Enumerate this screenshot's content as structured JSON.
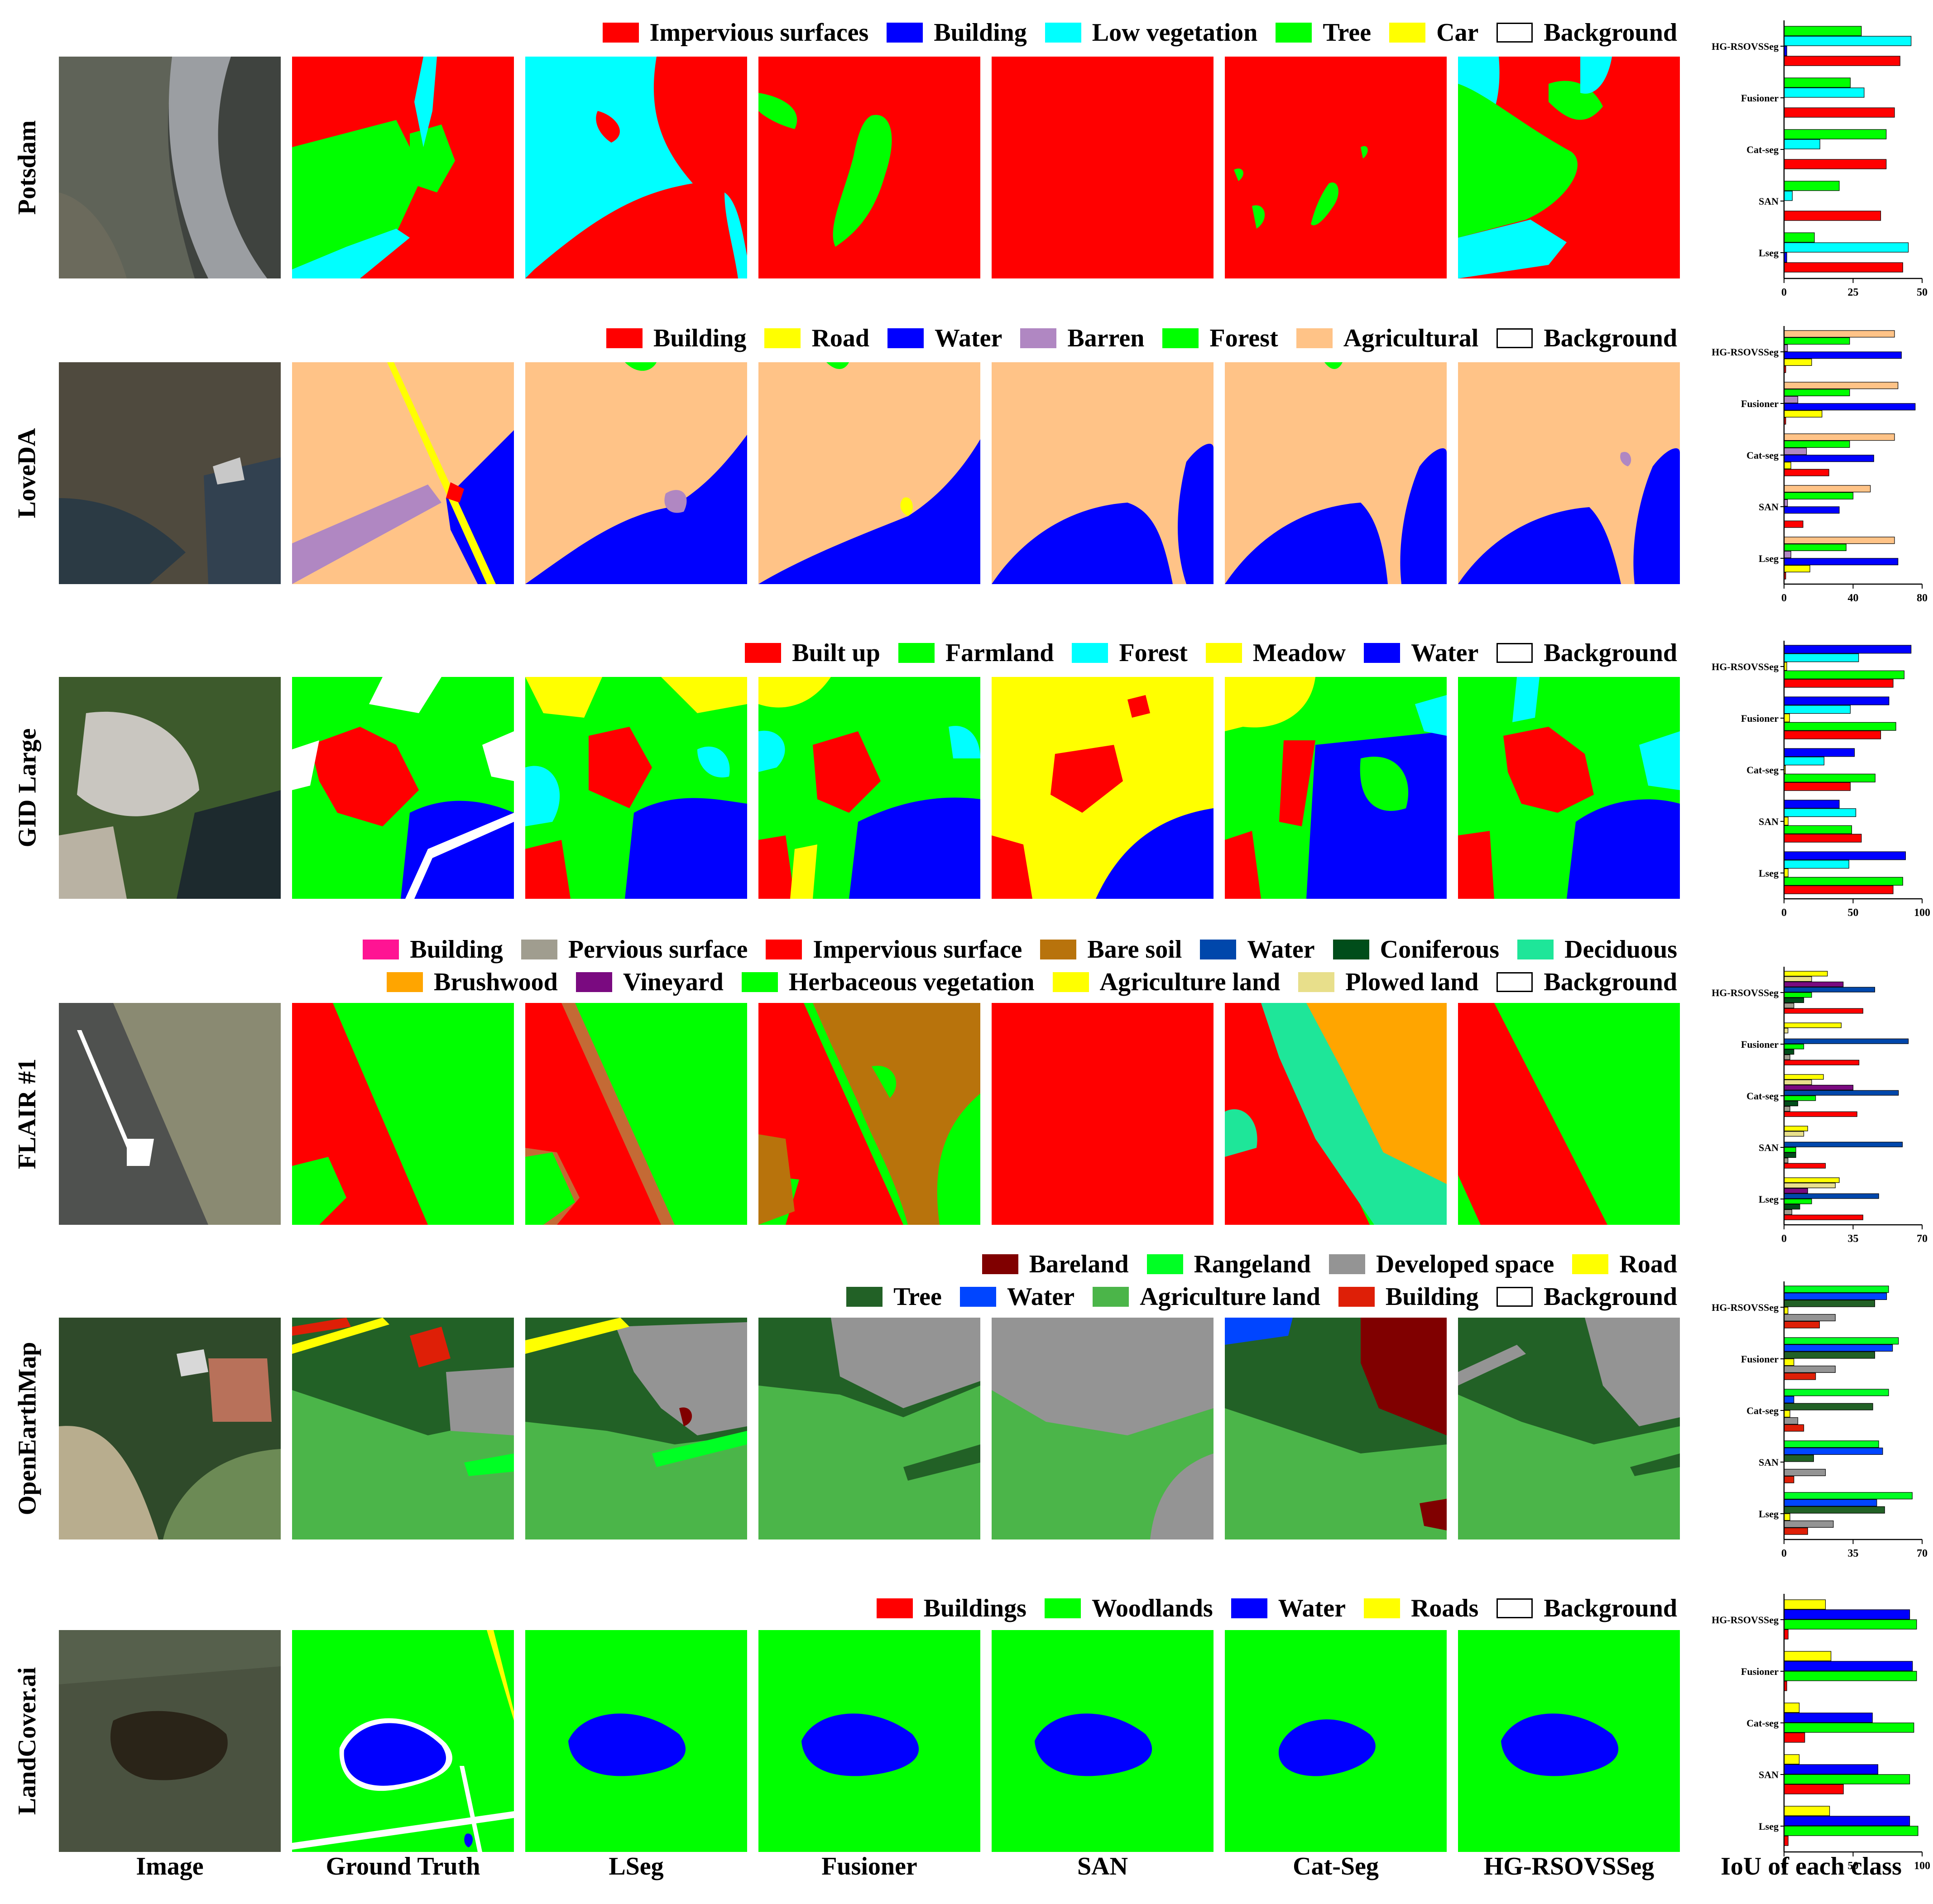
{
  "columns": [
    "Image",
    "Ground Truth",
    "LSeg",
    "Fusioner",
    "SAN",
    "Cat-Seg",
    "HG-RSOVSSeg",
    "IoU of each class"
  ],
  "methods_top_to_bottom": [
    "HG-RSOVSSeg",
    "Fusioner",
    "Cat-seg",
    "SAN",
    "Lseg"
  ],
  "rows": [
    {
      "name": "Potsdam",
      "legend_lines": [
        [
          {
            "label": "Impervious surfaces",
            "color": "#ff0000"
          },
          {
            "label": "Building",
            "color": "#0000ff"
          },
          {
            "label": "Low vegetation",
            "color": "#00ffff"
          },
          {
            "label": "Tree",
            "color": "#00ff00"
          },
          {
            "label": "Car",
            "color": "#ffff00"
          },
          {
            "label": "Background",
            "color": "#ffffff"
          }
        ]
      ],
      "iou": {
        "axis_max": 50,
        "ticks": [
          0,
          25,
          50
        ],
        "classes": [
          {
            "color": "#00ff00",
            "values": [
              28,
              24,
              37,
              20,
              11
            ]
          },
          {
            "color": "#00ffff",
            "values": [
              46,
              29,
              13,
              3,
              45
            ]
          },
          {
            "color": "#0000ff",
            "values": [
              1,
              0,
              0,
              0,
              1
            ]
          },
          {
            "color": "#ff0000",
            "values": [
              42,
              40,
              37,
              35,
              43
            ]
          }
        ]
      }
    },
    {
      "name": "LoveDA",
      "legend_lines": [
        [
          {
            "label": "Building",
            "color": "#ff0000"
          },
          {
            "label": "Road",
            "color": "#ffff00"
          },
          {
            "label": "Water",
            "color": "#0000ff"
          },
          {
            "label": "Barren",
            "color": "#b087c2"
          },
          {
            "label": "Forest",
            "color": "#00ff00"
          },
          {
            "label": "Agricultural",
            "color": "#ffc387"
          },
          {
            "label": "Background",
            "color": "#ffffff"
          }
        ]
      ],
      "iou": {
        "axis_max": 80,
        "ticks": [
          0,
          40,
          80
        ],
        "classes": [
          {
            "color": "#ffc387",
            "values": [
              64,
              66,
              64,
              50,
              64
            ]
          },
          {
            "color": "#00ff00",
            "values": [
              38,
              38,
              38,
              40,
              36
            ]
          },
          {
            "color": "#b087c2",
            "values": [
              2,
              8,
              13,
              2,
              4
            ]
          },
          {
            "color": "#0000ff",
            "values": [
              68,
              76,
              52,
              32,
              66
            ]
          },
          {
            "color": "#ffff00",
            "values": [
              16,
              22,
              4,
              0,
              15
            ]
          },
          {
            "color": "#ff0000",
            "values": [
              1,
              1,
              26,
              11,
              1
            ]
          }
        ]
      }
    },
    {
      "name": "GID Large",
      "legend_lines": [
        [
          {
            "label": "Built up",
            "color": "#ff0000"
          },
          {
            "label": "Farmland",
            "color": "#00ff00"
          },
          {
            "label": "Forest",
            "color": "#00ffff"
          },
          {
            "label": "Meadow",
            "color": "#ffff00"
          },
          {
            "label": "Water",
            "color": "#0000ff"
          },
          {
            "label": "Background",
            "color": "#ffffff"
          }
        ]
      ],
      "iou": {
        "axis_max": 100,
        "ticks": [
          0,
          50,
          100
        ],
        "classes": [
          {
            "color": "#0000ff",
            "values": [
              92,
              76,
              51,
              40,
              88
            ]
          },
          {
            "color": "#00ffff",
            "values": [
              54,
              48,
              29,
              52,
              47
            ]
          },
          {
            "color": "#ffff00",
            "values": [
              2,
              4,
              1,
              3,
              3
            ]
          },
          {
            "color": "#00ff00",
            "values": [
              87,
              81,
              66,
              49,
              86
            ]
          },
          {
            "color": "#ff0000",
            "values": [
              79,
              70,
              48,
              56,
              79
            ]
          }
        ]
      }
    },
    {
      "name": "FLAIR #1",
      "legend_lines": [
        [
          {
            "label": "Building",
            "color": "#ff1493"
          },
          {
            "label": "Pervious surface",
            "color": "#a09d8f"
          },
          {
            "label": "Impervious surface",
            "color": "#ff0000"
          },
          {
            "label": "Bare soil",
            "color": "#b8730c"
          },
          {
            "label": "Water",
            "color": "#0047ab"
          },
          {
            "label": "Coniferous",
            "color": "#004d1a"
          },
          {
            "label": "Deciduous",
            "color": "#1ee699"
          }
        ],
        [
          {
            "label": "Brushwood",
            "color": "#ffa500"
          },
          {
            "label": "Vineyard",
            "color": "#7a0a80"
          },
          {
            "label": "Herbaceous vegetation",
            "color": "#00ff00"
          },
          {
            "label": "Agriculture land",
            "color": "#ffff00"
          },
          {
            "label": "Plowed land",
            "color": "#e8df8b"
          },
          {
            "label": "Background",
            "color": "#ffffff"
          }
        ]
      ],
      "iou": {
        "axis_max": 70,
        "ticks": [
          0,
          35,
          70
        ],
        "classes": [
          {
            "color": "#ffff00",
            "values": [
              22,
              29,
              20,
              12,
              28
            ]
          },
          {
            "color": "#e8df8b",
            "values": [
              14,
              2,
              14,
              10,
              26
            ]
          },
          {
            "color": "#7a0a80",
            "values": [
              30,
              0,
              35,
              0,
              12
            ]
          },
          {
            "color": "#0047ab",
            "values": [
              46,
              63,
              58,
              60,
              48
            ]
          },
          {
            "color": "#00ff00",
            "values": [
              14,
              10,
              16,
              6,
              14
            ]
          },
          {
            "color": "#004d1a",
            "values": [
              10,
              5,
              7,
              6,
              8
            ]
          },
          {
            "color": "#a09d8f",
            "values": [
              5,
              3,
              3,
              2,
              4
            ]
          },
          {
            "color": "#ff0000",
            "values": [
              40,
              38,
              37,
              21,
              40
            ]
          }
        ]
      }
    },
    {
      "name": "OpenEarthMap",
      "legend_lines": [
        [
          {
            "label": "Bareland",
            "color": "#800000"
          },
          {
            "label": "Rangeland",
            "color": "#00ff24"
          },
          {
            "label": "Developed space",
            "color": "#949494"
          },
          {
            "label": "Road",
            "color": "#ffff00"
          }
        ],
        [
          {
            "label": "Tree",
            "color": "#226126"
          },
          {
            "label": "Water",
            "color": "#0045ff"
          },
          {
            "label": "Agriculture land",
            "color": "#4bb549"
          },
          {
            "label": "Building",
            "color": "#de1f07"
          },
          {
            "label": "Background",
            "color": "#ffffff"
          }
        ]
      ],
      "iou": {
        "axis_max": 70,
        "ticks": [
          0,
          35,
          70
        ],
        "classes": [
          {
            "color": "#00ff24",
            "values": [
              53,
              58,
              53,
              48,
              65
            ]
          },
          {
            "color": "#0045ff",
            "values": [
              52,
              55,
              5,
              50,
              47
            ]
          },
          {
            "color": "#226126",
            "values": [
              46,
              46,
              45,
              15,
              51
            ]
          },
          {
            "color": "#ffff00",
            "values": [
              2,
              5,
              3,
              0,
              3
            ]
          },
          {
            "color": "#949494",
            "values": [
              26,
              26,
              7,
              21,
              25
            ]
          },
          {
            "color": "#de1f07",
            "values": [
              18,
              16,
              10,
              5,
              12
            ]
          }
        ]
      }
    },
    {
      "name": "LandCover.ai",
      "legend_lines": [
        [
          {
            "label": "Buildings",
            "color": "#ff0000"
          },
          {
            "label": "Woodlands",
            "color": "#00ff00"
          },
          {
            "label": "Water",
            "color": "#0000ff"
          },
          {
            "label": "Roads",
            "color": "#ffff00"
          },
          {
            "label": "Background",
            "color": "#ffffff"
          }
        ]
      ],
      "iou": {
        "axis_max": 100,
        "ticks": [
          0,
          50,
          100
        ],
        "classes": [
          {
            "color": "#ffff00",
            "values": [
              30,
              34,
              11,
              11,
              33
            ]
          },
          {
            "color": "#0000ff",
            "values": [
              91,
              93,
              64,
              68,
              91
            ]
          },
          {
            "color": "#00ff00",
            "values": [
              96,
              96,
              94,
              91,
              97
            ]
          },
          {
            "color": "#ff0000",
            "values": [
              3,
              2,
              15,
              43,
              3
            ]
          }
        ]
      }
    }
  ]
}
